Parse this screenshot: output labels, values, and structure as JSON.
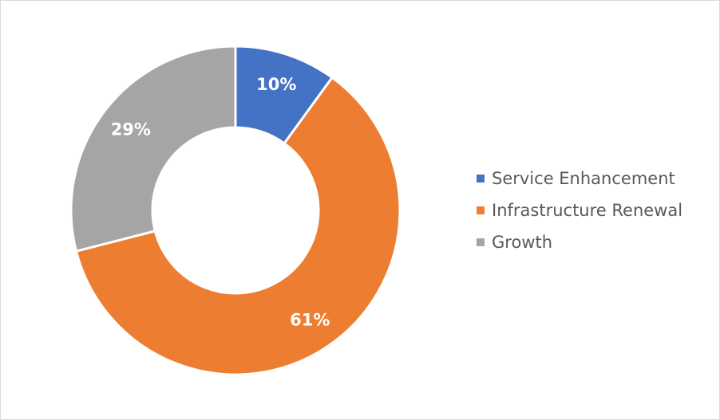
{
  "chart_data": {
    "type": "pie",
    "variant": "donut",
    "title": "",
    "categories": [
      "Service Enhancement",
      "Infrastructure Renewal",
      "Growth"
    ],
    "values": [
      10,
      61,
      29
    ],
    "labels": [
      "10%",
      "61%",
      "29%"
    ],
    "colors": [
      "#4472C4",
      "#ED7D31",
      "#A5A5A5"
    ],
    "legend_position": "right"
  },
  "legend": {
    "items": [
      {
        "label": "Service Enhancement",
        "color": "#4472C4"
      },
      {
        "label": "Infrastructure Renewal",
        "color": "#ED7D31"
      },
      {
        "label": "Growth",
        "color": "#A5A5A5"
      }
    ]
  }
}
